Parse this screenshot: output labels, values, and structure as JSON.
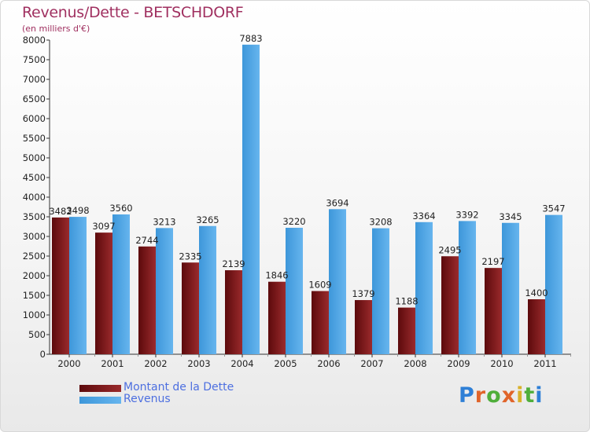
{
  "header": {
    "title": "Revenus/Dette - BETSCHDORF",
    "subtitle": "(en milliers d'€)"
  },
  "colors": {
    "debt": "#7a1518",
    "revenue": "#4aa3e4",
    "title": "#a03060",
    "legend_text": "#4d6fe0"
  },
  "logo": {
    "text": "Proxiti",
    "letter_colors": [
      "#2e7fd6",
      "#e0642a",
      "#4fae3a",
      "#e0642a",
      "#d9b12a",
      "#4fae3a",
      "#2e7fd6"
    ]
  },
  "chart_data": {
    "type": "bar",
    "title": "Revenus/Dette - BETSCHDORF",
    "ylabel": "(en milliers d'€)",
    "xlabel": "",
    "categories": [
      "2000",
      "2001",
      "2002",
      "2003",
      "2004",
      "2005",
      "2006",
      "2007",
      "2008",
      "2009",
      "2010",
      "2011"
    ],
    "series": [
      {
        "name": "Montant de la Dette",
        "values": [
          3482,
          3097,
          2744,
          2335,
          2139,
          1846,
          1609,
          1379,
          1188,
          2495,
          2197,
          1400
        ]
      },
      {
        "name": "Revenus",
        "values": [
          3498,
          3560,
          3213,
          3265,
          7883,
          3220,
          3694,
          3208,
          3364,
          3392,
          3345,
          3547
        ]
      }
    ],
    "ylim": [
      0,
      8000
    ],
    "yticks": [
      0,
      500,
      1000,
      1500,
      2000,
      2500,
      3000,
      3500,
      4000,
      4500,
      5000,
      5500,
      6000,
      6500,
      7000,
      7500,
      8000
    ],
    "legend_position": "bottom-left",
    "grid": false
  }
}
